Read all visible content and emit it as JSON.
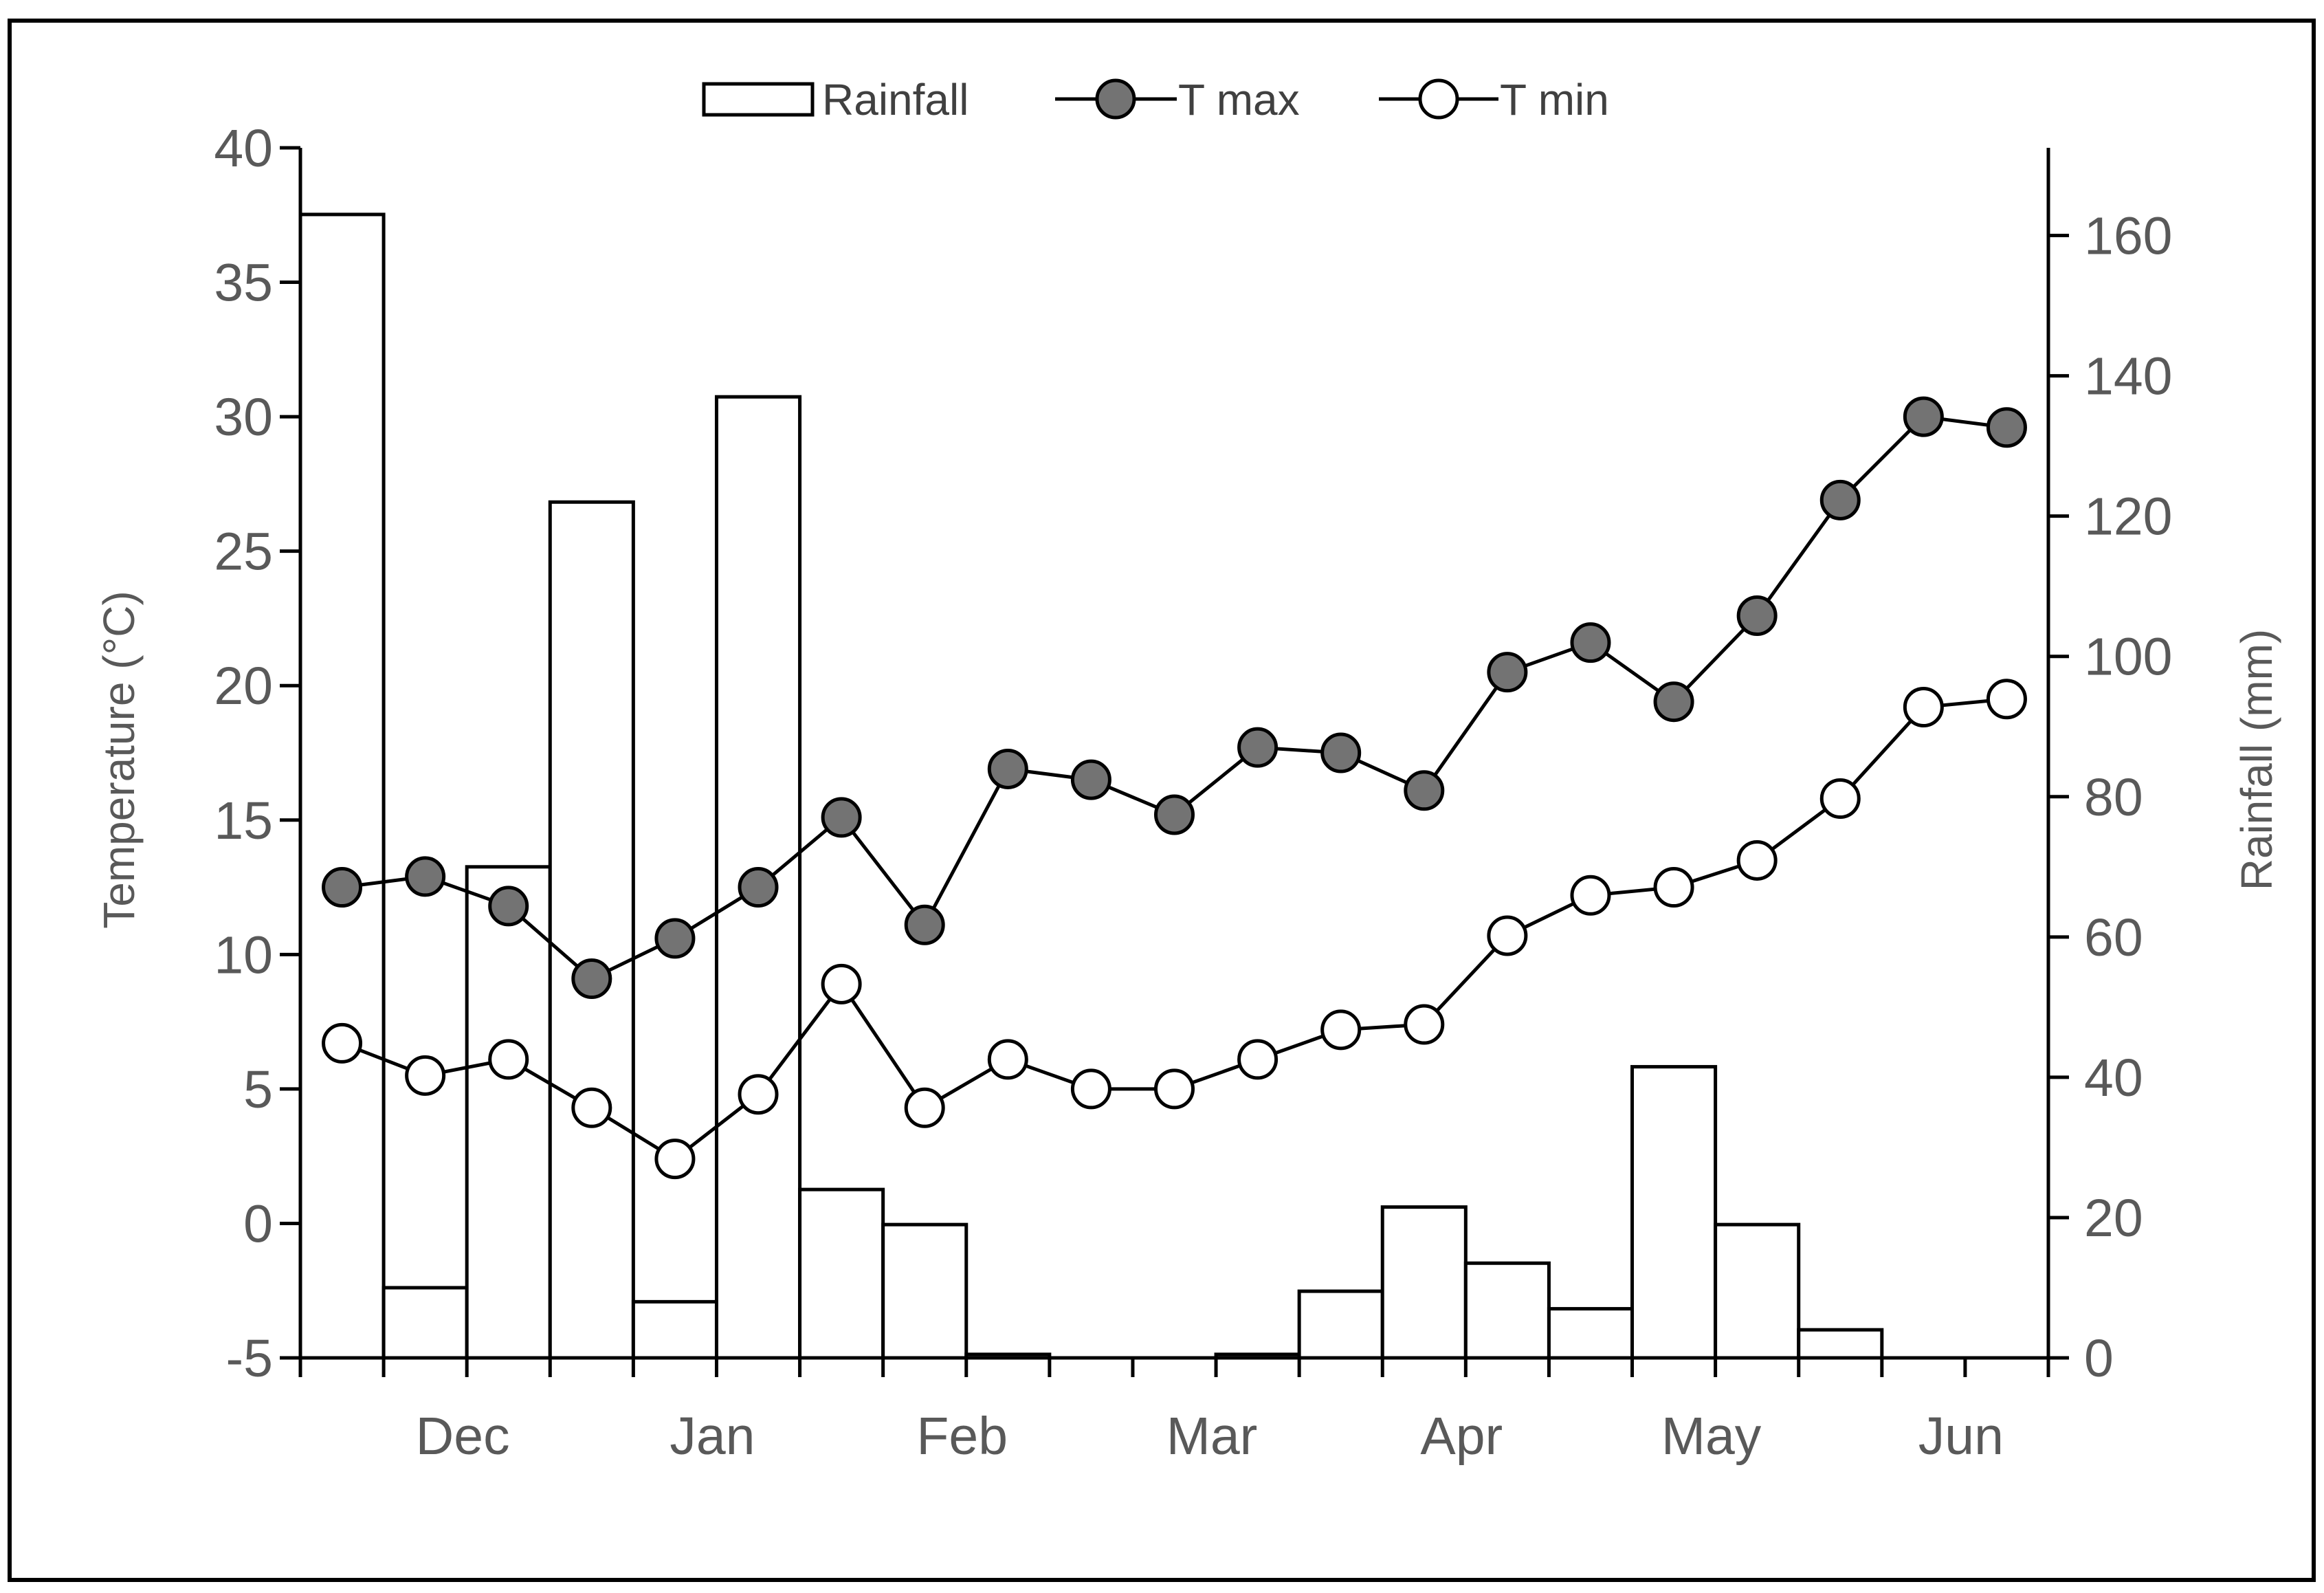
{
  "chart_data": {
    "type": "bar+line",
    "legend": [
      "Rainfall",
      "T max",
      "T min"
    ],
    "legend_position": "top-center",
    "months": [
      "Dec",
      "Jan",
      "Feb",
      "Mar",
      "Apr",
      "May",
      "Jun"
    ],
    "y_left": {
      "label": "Temperature (°C)",
      "min": -5,
      "max": 40,
      "step": 5,
      "ticks": [
        "-5",
        "0",
        "5",
        "10",
        "15",
        "20",
        "25",
        "30",
        "35",
        "40"
      ]
    },
    "y_right": {
      "label": "Rainfall (mm)",
      "min": 0,
      "max": 172.5,
      "step": 20,
      "ticks": [
        "0",
        "20",
        "40",
        "60",
        "80",
        "100",
        "120",
        "140",
        "160"
      ]
    },
    "periods": 21,
    "series": [
      {
        "name": "Rainfall",
        "axis": "right",
        "type": "bar",
        "values": [
          163,
          10,
          70,
          122,
          8,
          137,
          24,
          19,
          0.5,
          0,
          0,
          0.5,
          9.5,
          21.5,
          13.5,
          7,
          41.5,
          19,
          4,
          0,
          0
        ]
      },
      {
        "name": "T max",
        "axis": "left",
        "type": "line",
        "marker": "filled",
        "values": [
          12.5,
          12.9,
          11.8,
          9.1,
          10.6,
          12.5,
          15.1,
          11.1,
          16.9,
          16.5,
          15.2,
          17.7,
          17.5,
          16.1,
          20.5,
          21.6,
          19.4,
          22.6,
          26.9,
          30.0,
          29.6
        ]
      },
      {
        "name": "T min",
        "axis": "left",
        "type": "line",
        "marker": "open",
        "values": [
          6.7,
          5.5,
          6.1,
          4.3,
          2.4,
          4.8,
          8.9,
          4.3,
          6.1,
          5.0,
          5.0,
          6.1,
          7.2,
          7.4,
          10.7,
          12.2,
          12.5,
          13.5,
          15.8,
          19.2,
          19.5
        ]
      }
    ]
  },
  "colors": {
    "axis": "#000000",
    "tick_text": "#595959",
    "legend_text": "#404040",
    "tmax_fill": "#737373",
    "tmin_fill": "#ffffff",
    "bar_fill": "#ffffff"
  }
}
